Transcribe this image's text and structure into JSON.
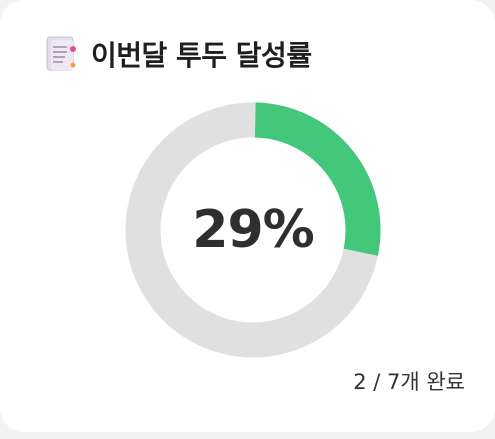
{
  "card": {
    "title": "이번달 투두 달성률",
    "icon": "memo-icon"
  },
  "progress": {
    "percent_label": "29%",
    "completed": 2,
    "total": 7,
    "fraction": 0.2857,
    "summary_label": "2 / 7개 완료"
  },
  "colors": {
    "done": "#43c77a",
    "remaining": "#e0e0e0",
    "text": "#2f2f2f"
  }
}
